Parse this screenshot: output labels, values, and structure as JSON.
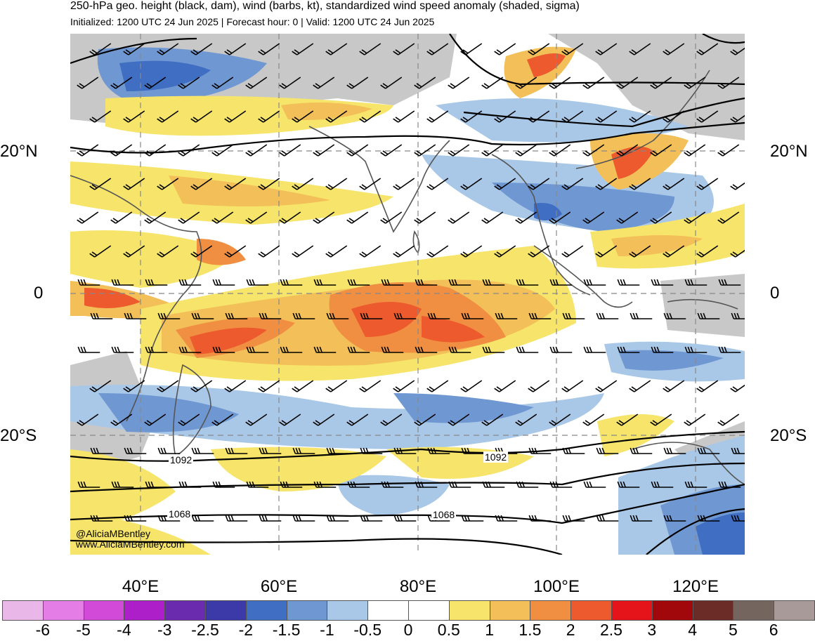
{
  "header": {
    "title": "250-hPa geo. height (black, dam), wind (barbs, kt), standardized wind speed anomaly (shaded, sigma)",
    "subtitle": "Initialized: 1200 UTC 24 Jun 2025 | Forecast hour: 0 | Valid: 1200 UTC 24 Jun 2025"
  },
  "map": {
    "lat_labels_left": [
      "20°N",
      "0",
      "20°S"
    ],
    "lat_labels_right": [
      "20°N",
      "0",
      "20°S"
    ],
    "lon_labels": [
      "40°E",
      "60°E",
      "80°E",
      "100°E",
      "120°E"
    ],
    "contour_labels": [
      "1092",
      "1092",
      "1068",
      "1068"
    ],
    "credit_handle": "@AliciaMBentley",
    "credit_site": "www.AliciaMBentley.com"
  },
  "colorbar": {
    "labels": [
      "-6",
      "-5",
      "-4",
      "-3",
      "-2.5",
      "-2",
      "-1.5",
      "-1",
      "-0.5",
      "0",
      "0.5",
      "1",
      "1.5",
      "2",
      "2.5",
      "3",
      "4",
      "5",
      "6"
    ],
    "colors": [
      "#eab8e8",
      "#e47ee6",
      "#d24ad8",
      "#ad1fc9",
      "#6a2bae",
      "#3c3aa8",
      "#3f6ec2",
      "#6f97d2",
      "#a9c8e8",
      "#ffffff",
      "#ffffff",
      "#f6e56a",
      "#f2bf58",
      "#f08f42",
      "#ec5a2e",
      "#e5141b",
      "#a1080b",
      "#6b2b27",
      "#75655f",
      "#a89a98"
    ]
  }
}
